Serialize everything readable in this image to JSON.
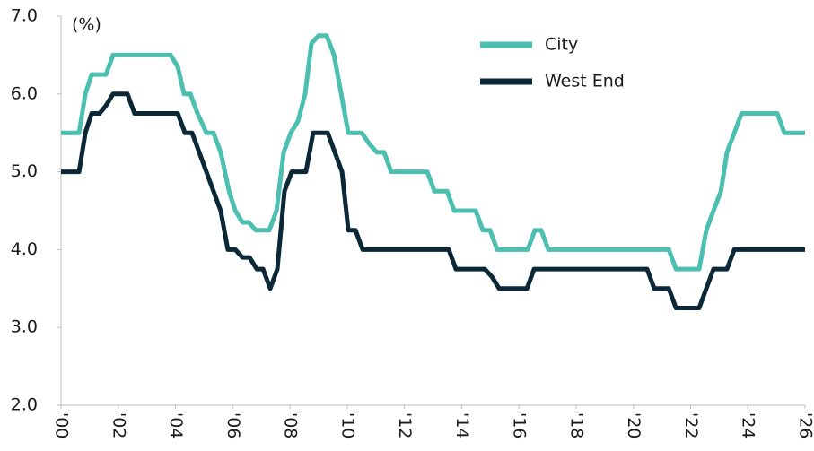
{
  "chart_data": {
    "type": "line",
    "y_label": "(%)",
    "xlim": [
      2000,
      2026
    ],
    "xticks": [
      {
        "value": 2000,
        "label": "'00"
      },
      {
        "value": 2002,
        "label": "'02"
      },
      {
        "value": 2004,
        "label": "'04"
      },
      {
        "value": 2006,
        "label": "'06"
      },
      {
        "value": 2008,
        "label": "'08"
      },
      {
        "value": 2010,
        "label": "'10"
      },
      {
        "value": 2012,
        "label": "'12"
      },
      {
        "value": 2014,
        "label": "'14"
      },
      {
        "value": 2016,
        "label": "'16"
      },
      {
        "value": 2018,
        "label": "'18"
      },
      {
        "value": 2020,
        "label": "'20"
      },
      {
        "value": 2022,
        "label": "'22"
      },
      {
        "value": 2024,
        "label": "'24"
      },
      {
        "value": 2026,
        "label": "'26"
      }
    ],
    "ylim": [
      2,
      7
    ],
    "yticks": [
      {
        "value": 2,
        "label": "2.0"
      },
      {
        "value": 3,
        "label": "3.0"
      },
      {
        "value": 4,
        "label": "4.0"
      },
      {
        "value": 5,
        "label": "5.0"
      },
      {
        "value": 6,
        "label": "6.0"
      },
      {
        "value": 7,
        "label": "7.0"
      }
    ],
    "legend": "upper right",
    "series": [
      {
        "name": "City",
        "color": "#4dbfb1",
        "x": [
          2000,
          2000.63,
          2000.85,
          2001.07,
          2001.57,
          2001.82,
          2003.83,
          2004.08,
          2004.3,
          2004.52,
          2004.77,
          2005.08,
          2005.33,
          2005.58,
          2005.87,
          2006.09,
          2006.34,
          2006.56,
          2006.81,
          2007.28,
          2007.53,
          2007.78,
          2008.03,
          2008.28,
          2008.53,
          2008.75,
          2009.0,
          2009.28,
          2009.54,
          2009.79,
          2010.04,
          2010.51,
          2010.79,
          2011.04,
          2011.29,
          2011.54,
          2012.8,
          2013.05,
          2013.49,
          2013.74,
          2014.49,
          2014.74,
          2014.99,
          2015.24,
          2016.31,
          2016.56,
          2016.78,
          2017.03,
          2021.24,
          2021.49,
          2022.3,
          2022.55,
          2022.8,
          2023.06,
          2023.27,
          2023.53,
          2023.78,
          2025.03,
          2025.28,
          2026.0
        ],
        "values": [
          5.5,
          5.5,
          6.0,
          6.25,
          6.25,
          6.5,
          6.5,
          6.35,
          6.0,
          6.0,
          5.75,
          5.5,
          5.5,
          5.25,
          4.75,
          4.5,
          4.35,
          4.35,
          4.25,
          4.25,
          4.5,
          5.25,
          5.5,
          5.65,
          6.0,
          6.65,
          6.75,
          6.75,
          6.5,
          6.0,
          5.5,
          5.5,
          5.35,
          5.25,
          5.25,
          5.0,
          5.0,
          4.75,
          4.75,
          4.5,
          4.5,
          4.25,
          4.25,
          4.0,
          4.0,
          4.25,
          4.25,
          4.0,
          4.0,
          3.75,
          3.75,
          4.25,
          4.5,
          4.75,
          5.25,
          5.5,
          5.75,
          5.75,
          5.5,
          5.5
        ]
      },
      {
        "name": "West End",
        "color": "#0b2838",
        "x": [
          2000,
          2000.63,
          2000.85,
          2001.07,
          2001.35,
          2001.57,
          2001.82,
          2002.32,
          2002.57,
          2004.08,
          2004.33,
          2004.58,
          2004.83,
          2005.33,
          2005.58,
          2005.83,
          2006.09,
          2006.34,
          2006.59,
          2006.84,
          2007.06,
          2007.31,
          2007.56,
          2007.81,
          2008.06,
          2008.56,
          2008.81,
          2009.32,
          2009.57,
          2009.82,
          2010.04,
          2010.29,
          2010.54,
          2013.55,
          2013.8,
          2014.81,
          2015.06,
          2015.31,
          2016.28,
          2016.53,
          2020.48,
          2020.73,
          2021.24,
          2021.49,
          2022.3,
          2022.55,
          2022.8,
          2023.27,
          2023.53,
          2026.0
        ],
        "values": [
          5.0,
          5.0,
          5.5,
          5.75,
          5.75,
          5.85,
          6.0,
          6.0,
          5.75,
          5.75,
          5.5,
          5.5,
          5.25,
          4.75,
          4.5,
          4.0,
          4.0,
          3.9,
          3.9,
          3.75,
          3.75,
          3.5,
          3.75,
          4.75,
          5.0,
          5.0,
          5.5,
          5.5,
          5.25,
          5.0,
          4.25,
          4.25,
          4.0,
          4.0,
          3.75,
          3.75,
          3.65,
          3.5,
          3.5,
          3.75,
          3.75,
          3.5,
          3.5,
          3.25,
          3.25,
          3.5,
          3.75,
          3.75,
          4.0,
          4.0
        ]
      }
    ]
  }
}
